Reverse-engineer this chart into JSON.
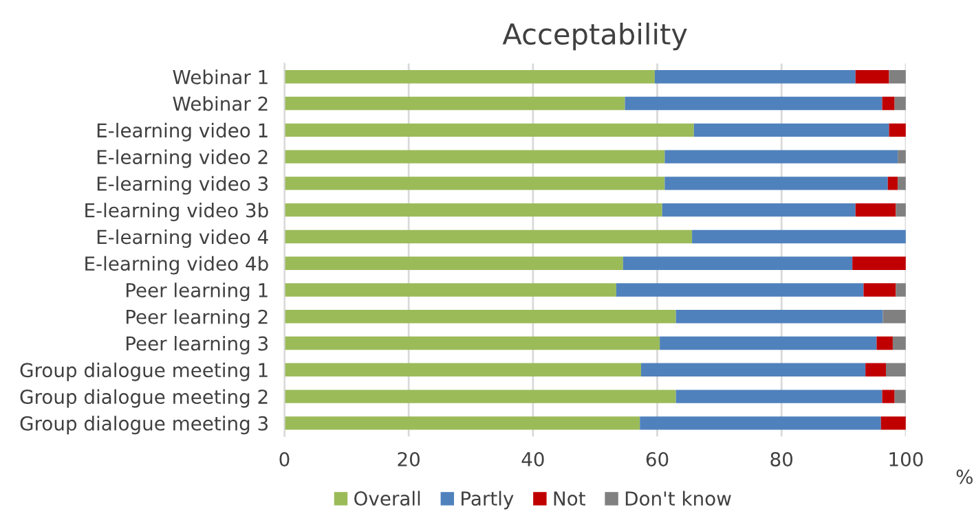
{
  "chart_data": {
    "type": "bar",
    "orientation": "horizontal",
    "stacked": true,
    "title": "Acceptability",
    "xlabel": "%",
    "categories": [
      "Webinar 1",
      "Webinar 2",
      "E-learning video 1",
      "E-learning video 2",
      "E-learning video 3",
      "E-learning video 3b",
      "E-learning video 4",
      "E-learning video 4b",
      "Peer learning 1",
      "Peer learning 2",
      "Peer learning 3",
      "Group dialogue meeting 1",
      "Group dialogue meeting 2",
      "Group dialogue meeting 3"
    ],
    "series": [
      {
        "name": "Overall",
        "color": "#9bbb59",
        "values": [
          59.6,
          54.8,
          65.9,
          61.2,
          61.2,
          60.8,
          65.6,
          54.5,
          53.4,
          63.0,
          60.4,
          57.4,
          63.0,
          57.2
        ]
      },
      {
        "name": "Partly",
        "color": "#4f81bd",
        "values": [
          32.3,
          41.4,
          31.4,
          37.5,
          35.9,
          31.1,
          34.4,
          36.9,
          39.8,
          33.3,
          34.9,
          36.1,
          33.2,
          38.8
        ]
      },
      {
        "name": "Not",
        "color": "#c00000",
        "values": [
          5.4,
          2.0,
          2.7,
          0,
          1.6,
          6.5,
          0,
          8.6,
          5.2,
          0,
          2.6,
          3.3,
          2.0,
          4.0
        ]
      },
      {
        "name": "Don't know",
        "color": "#808080",
        "values": [
          2.7,
          1.8,
          0,
          1.3,
          1.3,
          1.6,
          0,
          0,
          1.6,
          3.7,
          2.1,
          3.2,
          1.8,
          0
        ]
      }
    ],
    "xlim": [
      0,
      100
    ],
    "xticks": [
      0,
      20,
      40,
      60,
      80,
      100
    ],
    "grid": "x",
    "legend": "bottom"
  }
}
